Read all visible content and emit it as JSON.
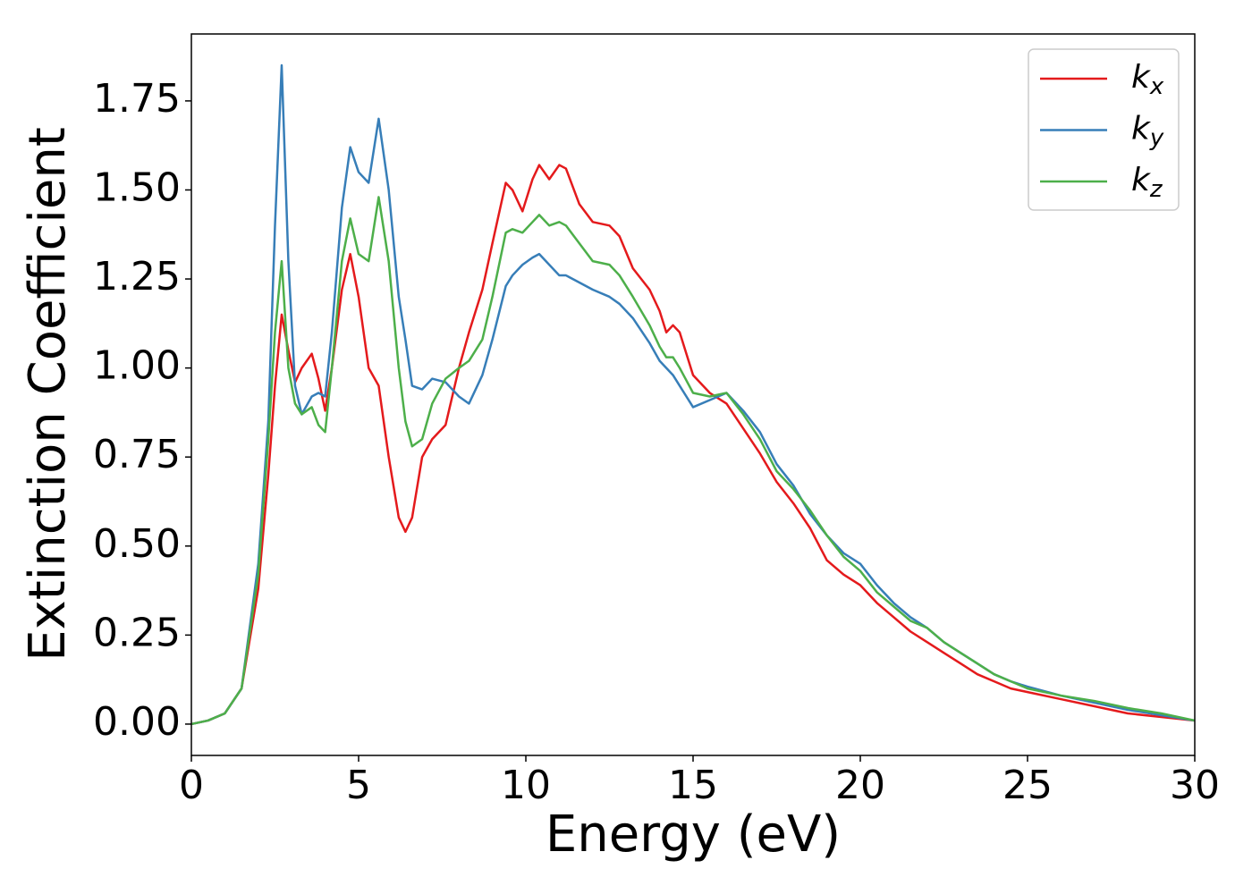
{
  "chart_data": {
    "type": "line",
    "xlabel": "Energy (eV)",
    "ylabel": "Extinction Coefficient",
    "x": [
      0,
      0.5,
      1,
      1.5,
      2,
      2.3,
      2.5,
      2.7,
      2.9,
      3.1,
      3.3,
      3.6,
      3.8,
      4.0,
      4.2,
      4.5,
      4.75,
      5.0,
      5.3,
      5.6,
      5.9,
      6.2,
      6.4,
      6.6,
      6.9,
      7.2,
      7.6,
      8.0,
      8.3,
      8.7,
      9.0,
      9.4,
      9.6,
      9.9,
      10.2,
      10.4,
      10.7,
      11.0,
      11.2,
      11.6,
      12.0,
      12.5,
      12.8,
      13.2,
      13.7,
      14.0,
      14.2,
      14.4,
      14.6,
      15.0,
      15.5,
      16.0,
      16.5,
      17.0,
      17.5,
      18.0,
      18.5,
      19.0,
      19.5,
      20.0,
      20.5,
      21.0,
      21.5,
      22.0,
      22.5,
      23.0,
      23.5,
      24.0,
      24.5,
      25.0,
      26.0,
      27.0,
      28.0,
      29.0,
      30.0
    ],
    "series": [
      {
        "name": "kx",
        "color": "#e41a1c",
        "values": [
          0,
          0.01,
          0.03,
          0.1,
          0.38,
          0.7,
          0.95,
          1.15,
          1.05,
          0.96,
          1.0,
          1.04,
          0.97,
          0.88,
          1.0,
          1.22,
          1.32,
          1.2,
          1.0,
          0.95,
          0.75,
          0.58,
          0.54,
          0.58,
          0.75,
          0.8,
          0.84,
          1.0,
          1.1,
          1.22,
          1.35,
          1.52,
          1.5,
          1.44,
          1.53,
          1.57,
          1.53,
          1.57,
          1.56,
          1.46,
          1.41,
          1.4,
          1.37,
          1.28,
          1.22,
          1.16,
          1.1,
          1.12,
          1.1,
          0.98,
          0.93,
          0.9,
          0.83,
          0.76,
          0.68,
          0.62,
          0.55,
          0.46,
          0.42,
          0.39,
          0.34,
          0.3,
          0.26,
          0.23,
          0.2,
          0.17,
          0.14,
          0.12,
          0.1,
          0.09,
          0.07,
          0.05,
          0.03,
          0.02,
          0.01
        ]
      },
      {
        "name": "ky",
        "color": "#377eb8",
        "values": [
          0,
          0.01,
          0.03,
          0.1,
          0.45,
          0.85,
          1.4,
          1.85,
          1.3,
          0.95,
          0.87,
          0.92,
          0.93,
          0.92,
          1.1,
          1.45,
          1.62,
          1.55,
          1.52,
          1.7,
          1.5,
          1.2,
          1.08,
          0.95,
          0.94,
          0.97,
          0.96,
          0.92,
          0.9,
          0.98,
          1.08,
          1.23,
          1.26,
          1.29,
          1.31,
          1.32,
          1.29,
          1.26,
          1.26,
          1.24,
          1.22,
          1.2,
          1.18,
          1.14,
          1.07,
          1.02,
          1.0,
          0.98,
          0.95,
          0.89,
          0.91,
          0.93,
          0.88,
          0.82,
          0.73,
          0.67,
          0.59,
          0.53,
          0.48,
          0.45,
          0.39,
          0.34,
          0.3,
          0.27,
          0.23,
          0.2,
          0.17,
          0.14,
          0.12,
          0.105,
          0.08,
          0.06,
          0.04,
          0.025,
          0.01
        ]
      },
      {
        "name": "kz",
        "color": "#4daf4a",
        "values": [
          0,
          0.01,
          0.03,
          0.1,
          0.42,
          0.8,
          1.1,
          1.3,
          1.0,
          0.9,
          0.87,
          0.89,
          0.84,
          0.82,
          1.0,
          1.3,
          1.42,
          1.32,
          1.3,
          1.48,
          1.3,
          1.0,
          0.85,
          0.78,
          0.8,
          0.9,
          0.97,
          1.0,
          1.02,
          1.08,
          1.2,
          1.38,
          1.39,
          1.38,
          1.41,
          1.43,
          1.4,
          1.41,
          1.4,
          1.35,
          1.3,
          1.29,
          1.26,
          1.2,
          1.12,
          1.06,
          1.03,
          1.03,
          1.0,
          0.93,
          0.92,
          0.93,
          0.87,
          0.8,
          0.71,
          0.66,
          0.6,
          0.53,
          0.47,
          0.43,
          0.37,
          0.33,
          0.29,
          0.27,
          0.23,
          0.2,
          0.17,
          0.14,
          0.12,
          0.1,
          0.08,
          0.065,
          0.045,
          0.03,
          0.01
        ]
      }
    ],
    "xlim": [
      0,
      30
    ],
    "xticks": [
      0,
      5,
      10,
      15,
      20,
      25,
      30
    ],
    "ylim": [
      -0.088,
      1.938
    ],
    "yticks": [
      {
        "value": 0,
        "label": "0.00"
      },
      0.25,
      {
        "value": 0.5,
        "label": "0.50"
      },
      0.75,
      {
        "value": 1,
        "label": "1.00"
      },
      1.25,
      {
        "value": 1.5,
        "label": "1.50"
      },
      1.75
    ],
    "grid": false,
    "legend": "upper right"
  }
}
